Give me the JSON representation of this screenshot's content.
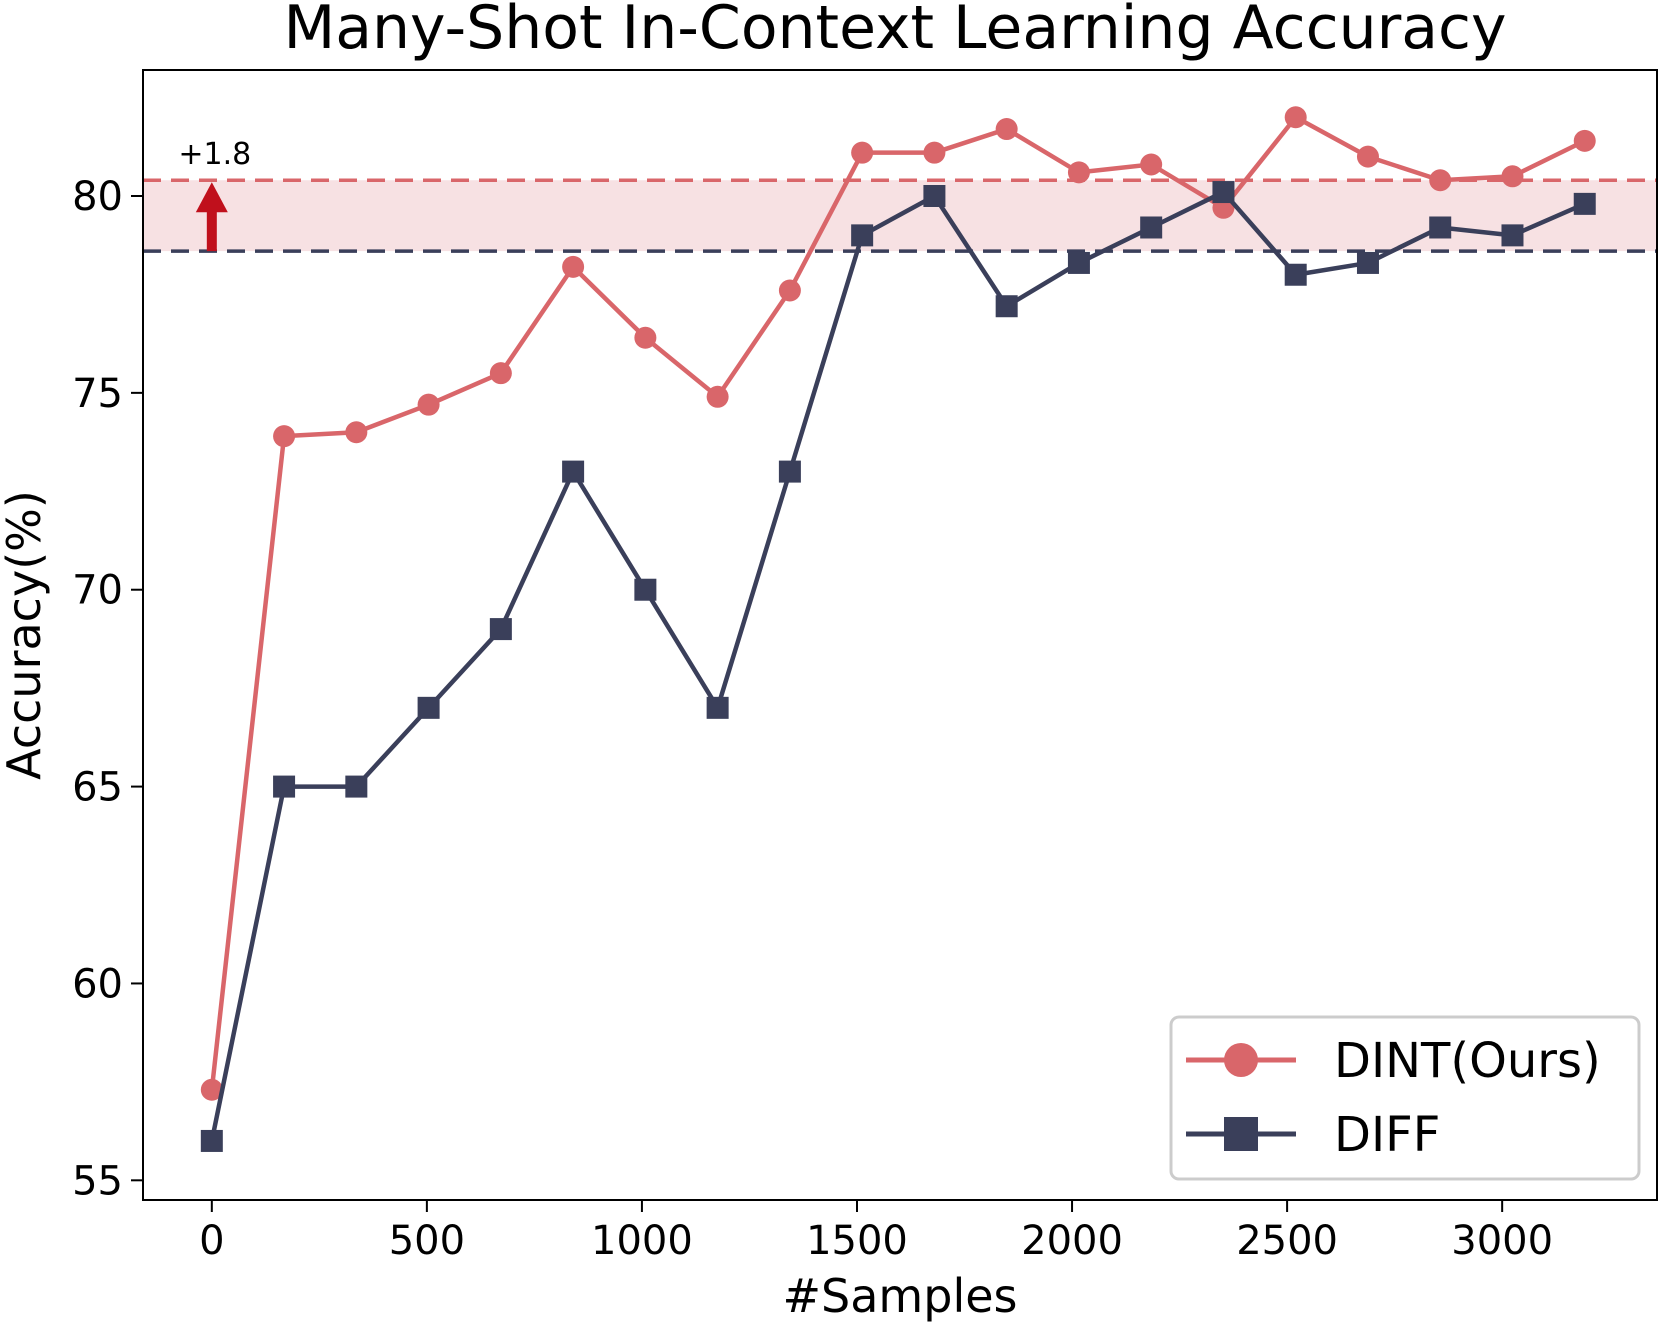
{
  "chart_data": {
    "type": "line",
    "title": "Many-Shot In-Context Learning Accuracy",
    "xlabel": "#Samples",
    "ylabel": "Accuracy(%)",
    "xlim": [
      -160,
      3360
    ],
    "ylim": [
      54.5,
      83.2
    ],
    "xticks": [
      0,
      500,
      1000,
      1500,
      2000,
      2500,
      3000
    ],
    "yticks": [
      55,
      60,
      65,
      70,
      75,
      80
    ],
    "x": [
      0,
      168,
      336,
      504,
      672,
      840,
      1008,
      1176,
      1344,
      1512,
      1680,
      1848,
      2016,
      2184,
      2352,
      2520,
      2688,
      2856,
      3024,
      3192
    ],
    "series": [
      {
        "name": "DINT(Ours)",
        "color": "#d9666a",
        "marker": "circle",
        "values": [
          57.3,
          73.9,
          74.0,
          74.7,
          75.5,
          78.2,
          76.4,
          74.9,
          77.6,
          81.1,
          81.1,
          81.7,
          80.6,
          80.8,
          79.7,
          82.0,
          81.0,
          80.4,
          80.5,
          81.4
        ]
      },
      {
        "name": "DIFF",
        "color": "#3a3f5a",
        "marker": "square",
        "values": [
          56.0,
          65.0,
          65.0,
          67.0,
          69.0,
          73.0,
          70.0,
          67.0,
          73.0,
          79.0,
          80.0,
          77.2,
          78.3,
          79.2,
          80.1,
          78.0,
          78.3,
          79.2,
          79.0,
          79.8
        ]
      }
    ],
    "reference_lines": [
      {
        "y": 80.4,
        "color": "#d9666a",
        "style": "dashed"
      },
      {
        "y": 78.6,
        "color": "#3a3f5a",
        "style": "dashed"
      }
    ],
    "shaded_band": {
      "from": 78.6,
      "to": 80.4,
      "color": "#f7e1e3"
    },
    "annotation": {
      "text": "+1.8",
      "x": 0,
      "arrow_color": "#c0101c"
    },
    "grid": false,
    "legend_position": "lower-right"
  }
}
